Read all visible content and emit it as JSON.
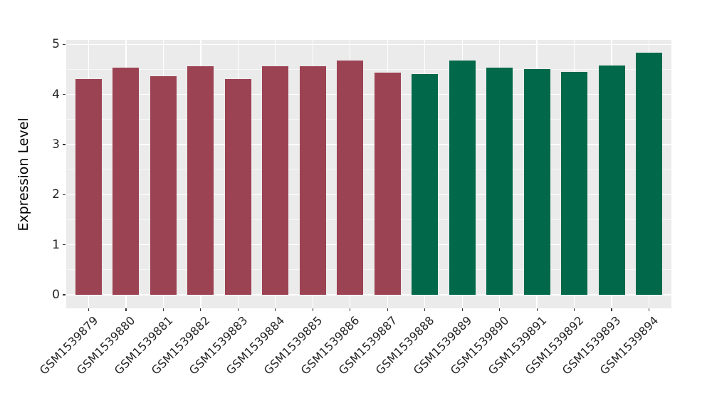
{
  "chart_data": {
    "type": "bar",
    "title": "",
    "xlabel": "",
    "ylabel": "Expression Level",
    "ylim": [
      0,
      5
    ],
    "yticks": [
      0,
      1,
      2,
      3,
      4,
      5
    ],
    "yticks_minor": [
      0.5,
      1.5,
      2.5,
      3.5,
      4.5
    ],
    "legend": "none",
    "grid": "white major gridlines at integer y and category centers; white minor gridlines at half-integer y",
    "panel_background": "#EBEBEB",
    "gridline_color": "#FFFFFF",
    "categories": [
      "GSM1539879",
      "GSM1539880",
      "GSM1539881",
      "GSM1539882",
      "GSM1539883",
      "GSM1539884",
      "GSM1539885",
      "GSM1539886",
      "GSM1539887",
      "GSM1539888",
      "GSM1539889",
      "GSM1539890",
      "GSM1539891",
      "GSM1539892",
      "GSM1539893",
      "GSM1539894"
    ],
    "values": [
      4.31,
      4.54,
      4.37,
      4.56,
      4.3,
      4.56,
      4.56,
      4.68,
      4.43,
      4.41,
      4.68,
      4.54,
      4.5,
      4.45,
      4.58,
      4.84
    ],
    "groups": [
      "maroon",
      "maroon",
      "maroon",
      "maroon",
      "maroon",
      "maroon",
      "maroon",
      "maroon",
      "maroon",
      "green",
      "green",
      "green",
      "green",
      "green",
      "green",
      "green"
    ],
    "group_colors": {
      "maroon": "#9C4353",
      "green": "#01694A"
    }
  }
}
